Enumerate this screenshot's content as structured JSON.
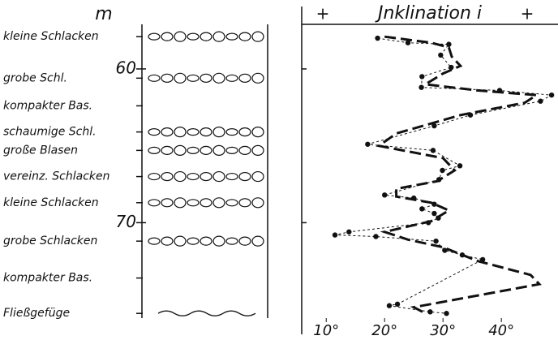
{
  "chart_data": {
    "type": "profile",
    "title": "Jnklination i",
    "title_marks": [
      "+",
      "+"
    ],
    "ylabel": "m",
    "ylim": [
      57.1,
      76.1
    ],
    "yticks": [
      60,
      70
    ],
    "xlim": [
      5.8,
      49.7
    ],
    "xticks": [
      {
        "value": 10,
        "label": "10°"
      },
      {
        "value": 20,
        "label": "20°"
      },
      {
        "value": 30,
        "label": "30°"
      },
      {
        "value": 40,
        "label": "40°"
      }
    ],
    "layers": [
      {
        "label": "kleine Schlacken",
        "depth": 57.9
      },
      {
        "label": "grobe Schl.",
        "depth": 60.6
      },
      {
        "label": "kompakter Bas.",
        "depth": 62.4
      },
      {
        "label": "schaumige Schl.",
        "depth": 64.1
      },
      {
        "label": "große Blasen",
        "depth": 65.3
      },
      {
        "label": "vereinz. Schlacken",
        "depth": 67.0
      },
      {
        "label": "kleine Schlacken",
        "depth": 68.7
      },
      {
        "label": "grobe Schlacken",
        "depth": 71.2
      },
      {
        "label": "kompakter Bas.",
        "depth": 73.6
      },
      {
        "label": "Fließgefüge",
        "depth": 75.9
      }
    ],
    "series": [
      {
        "color": "#111111",
        "style": "points",
        "depth": [
          58.0,
          58.3,
          58.4,
          59.1,
          59.9,
          60.5,
          61.2,
          61.4,
          61.7,
          62.1,
          63.0,
          63.7,
          64.9,
          65.3,
          66.3,
          66.6,
          67.2,
          68.2,
          68.4,
          68.8,
          69.1,
          69.4,
          69.7,
          70.0,
          70.6,
          70.8,
          70.9,
          71.2,
          71.8,
          72.1,
          72.4,
          75.3,
          75.4,
          75.8,
          75.9
        ],
        "values": [
          18.8,
          24.0,
          31.0,
          29.6,
          31.4,
          26.4,
          26.3,
          39.7,
          48.6,
          46.7,
          34.7,
          28.5,
          17.1,
          28.3,
          32.9,
          29.9,
          29.3,
          20.0,
          25.0,
          28.5,
          26.4,
          28.5,
          29.2,
          27.5,
          13.9,
          11.5,
          18.5,
          28.8,
          30.3,
          33.3,
          36.8,
          22.2,
          20.8,
          27.8,
          30.6
        ]
      },
      {
        "color": "#111111",
        "style": "curve",
        "depth": [
          57.9,
          58.3,
          58.6,
          59.2,
          59.8,
          60.3,
          61.0,
          61.4,
          61.7,
          62.2,
          63.0,
          64.2,
          65.0,
          65.8,
          66.6,
          67.3,
          67.8,
          68.3,
          68.7,
          69.2,
          69.9,
          70.6,
          71.1,
          71.6,
          72.5,
          73.4,
          74.0,
          74.8,
          75.5,
          75.9
        ],
        "values": [
          20,
          28,
          31,
          31.5,
          33,
          30,
          27,
          36,
          46,
          44,
          33,
          22,
          19,
          30,
          32,
          29,
          22,
          22,
          28,
          31,
          28,
          20,
          24,
          30,
          36,
          45,
          46.5,
          35,
          25,
          27
        ]
      }
    ]
  }
}
